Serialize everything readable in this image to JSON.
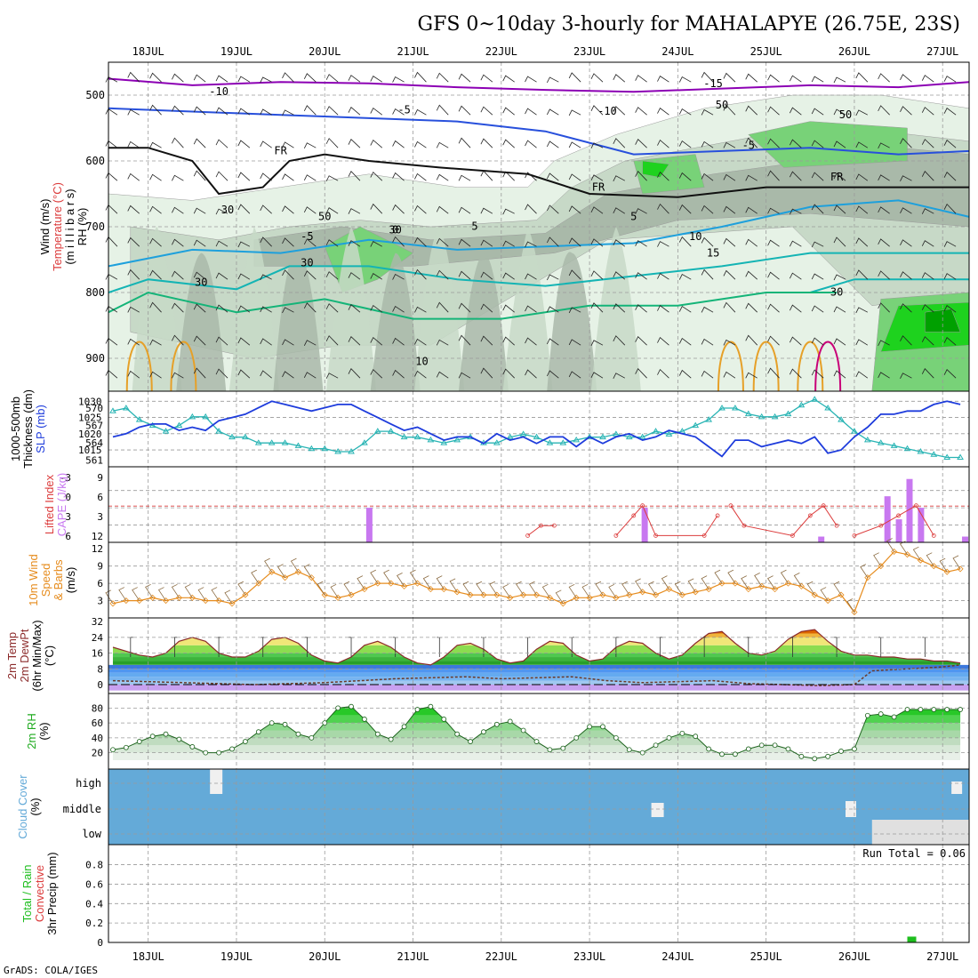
{
  "header": {
    "title": "GFS 0~10day 3-hourly for MAHALAPYE (26.75E, 23S)",
    "footer": "GrADS: COLA/IGES"
  },
  "time_axis": {
    "labels": [
      "18JUL",
      "19JUL",
      "20JUL",
      "21JUL",
      "22JUL",
      "23JUL",
      "24JUL",
      "25JUL",
      "26JUL",
      "27JUL"
    ],
    "start_day": 17.55,
    "end_day": 27.3
  },
  "colors": {
    "rh_light": "#e6f2e6",
    "rh_mid": "#c7d9c7",
    "rh_dark": "#a9b9a9",
    "rh_green": "#78d278",
    "rh_bright": "#1ed21e",
    "rh_deep": "#00a000",
    "temp_purple": "#8c00b4",
    "temp_blue": "#2850dc",
    "temp_lightblue": "#1ea0dc",
    "temp_teal": "#14b4b4",
    "temp_green": "#14b478",
    "temp_orange": "#e6a028",
    "temp_dkorange": "#dc6400",
    "temp_magenta": "#c80078",
    "slp": "#1e3cdc",
    "thickness": "#28b4b4",
    "cape": "#c878f0",
    "lifted": "#dc3c3c",
    "wind10m": "#e68c1e",
    "cloud": "#64aad8",
    "precip": "#1ebe1e"
  },
  "panels": {
    "upper": {
      "ylabels": [
        "Wind (m/s)",
        "Temperature (°C)",
        "(m i l l i b a r s)",
        "RH (%)"
      ],
      "ylim": [
        950,
        450
      ],
      "ticks": [
        500,
        600,
        700,
        800,
        900
      ],
      "contour_labels": [
        "-10",
        "-15",
        "-10",
        "-5",
        "-5",
        "-5",
        "FR",
        "FR",
        "FR",
        "5",
        "5",
        "10",
        "15",
        "10",
        "50",
        "50",
        "30",
        "50",
        "30",
        "30",
        "30",
        "30",
        "0"
      ]
    },
    "slp": {
      "ylabels": [
        "1000-500mb",
        "Thickness (dm)",
        "SLP (mb)"
      ],
      "left_ticks": [
        "570",
        "567",
        "564",
        "561"
      ],
      "right_ticks": [
        "1030",
        "1025",
        "1020",
        "1015"
      ]
    },
    "cape": {
      "ylabels": [
        "Lifted Index",
        "CAPE (J/kg)"
      ],
      "left_ticks": [
        "-3",
        "0",
        "3",
        "6"
      ],
      "right_ticks": [
        "9",
        "6",
        "3",
        "12"
      ]
    },
    "wind": {
      "ylabels": [
        "10m Wind",
        "Speed",
        "& Barbs",
        "(m/s)"
      ],
      "ticks": [
        "12",
        "9",
        "6",
        "3"
      ]
    },
    "temp": {
      "ylabels": [
        "2m Temp",
        "2m DewPt",
        "(6hr Min/Max)",
        "(°C)"
      ],
      "ticks": [
        "32",
        "24",
        "16",
        "8",
        "0"
      ]
    },
    "rh": {
      "ylabels": [
        "2m RH",
        "(%)"
      ],
      "ticks": [
        "80",
        "60",
        "40",
        "20"
      ]
    },
    "cloud": {
      "ylabels": [
        "Cloud Cover",
        "(%)"
      ],
      "levels": [
        "high",
        "middle",
        "low"
      ]
    },
    "precip": {
      "ylabels": [
        "Total / Rain",
        "Convective",
        "3hr Precip (mm)"
      ],
      "ticks": [
        "0.8",
        "0.6",
        "0.4",
        "0.2",
        "0"
      ],
      "run_total": "Run Total = 0.06"
    }
  },
  "chart_data": [
    {
      "type": "line",
      "name": "SLP",
      "unit": "mb",
      "x": [
        17.6,
        17.75,
        17.9,
        18.05,
        18.2,
        18.35,
        18.5,
        18.65,
        18.8,
        18.95,
        19.1,
        19.25,
        19.4,
        19.55,
        19.7,
        19.85,
        20.0,
        20.15,
        20.3,
        20.45,
        20.6,
        20.75,
        20.9,
        21.05,
        21.2,
        21.35,
        21.5,
        21.65,
        21.8,
        21.95,
        22.1,
        22.25,
        22.4,
        22.55,
        22.7,
        22.85,
        23.0,
        23.15,
        23.3,
        23.45,
        23.6,
        23.75,
        23.9,
        24.05,
        24.2,
        24.35,
        24.5,
        24.65,
        24.8,
        24.95,
        25.1,
        25.25,
        25.4,
        25.55,
        25.7,
        25.85,
        26.0,
        26.15,
        26.3,
        26.45,
        26.6,
        26.75,
        26.9,
        27.05,
        27.2
      ],
      "y": [
        1019,
        1020,
        1022,
        1023,
        1023,
        1021,
        1022,
        1021,
        1024,
        1025,
        1026,
        1028,
        1030,
        1029,
        1028,
        1027,
        1028,
        1029,
        1029,
        1027,
        1025,
        1023,
        1021,
        1022,
        1020,
        1018,
        1019,
        1019,
        1017,
        1020,
        1018,
        1019,
        1017,
        1019,
        1019,
        1016,
        1019,
        1017,
        1019,
        1020,
        1018,
        1019,
        1021,
        1020,
        1019,
        1016,
        1013,
        1018,
        1018,
        1016,
        1017,
        1018,
        1017,
        1019,
        1014,
        1015,
        1019,
        1022,
        1026,
        1026,
        1027,
        1027,
        1029,
        1030,
        1029
      ]
    },
    {
      "type": "line",
      "name": "1000-500mb Thickness",
      "unit": "dm",
      "x": [
        17.6,
        17.75,
        17.9,
        18.05,
        18.2,
        18.35,
        18.5,
        18.65,
        18.8,
        18.95,
        19.1,
        19.25,
        19.4,
        19.55,
        19.7,
        19.85,
        20.0,
        20.15,
        20.3,
        20.45,
        20.6,
        20.75,
        20.9,
        21.05,
        21.2,
        21.35,
        21.5,
        21.65,
        21.8,
        21.95,
        22.1,
        22.25,
        22.4,
        22.55,
        22.7,
        22.85,
        23.0,
        23.15,
        23.3,
        23.45,
        23.6,
        23.75,
        23.9,
        24.05,
        24.2,
        24.35,
        24.5,
        24.65,
        24.8,
        24.95,
        25.1,
        25.25,
        25.4,
        25.55,
        25.7,
        25.85,
        26.0,
        26.15,
        26.3,
        26.45,
        26.6,
        26.75,
        26.9,
        27.05,
        27.2
      ],
      "y": [
        569.5,
        570,
        568,
        567,
        566,
        567,
        568.5,
        568.5,
        566,
        565,
        565,
        564,
        564,
        564,
        563.5,
        563,
        563,
        562.5,
        562.5,
        564,
        566,
        566,
        565,
        565,
        564.5,
        564,
        564.5,
        565,
        564,
        564,
        565,
        565.5,
        565,
        564,
        564,
        564.5,
        565,
        565,
        565.5,
        565,
        565,
        566,
        565.5,
        566,
        567,
        568,
        570,
        570,
        569,
        568.5,
        568.5,
        569,
        570.5,
        571.5,
        570,
        568,
        566,
        564.5,
        564,
        563.5,
        563,
        562.5,
        562,
        561.5,
        561.5
      ]
    },
    {
      "type": "bar",
      "name": "CAPE",
      "unit": "J/kg",
      "x": [
        20.5,
        23.62,
        25.62,
        26.37,
        26.5,
        26.62,
        26.75,
        27.25
      ],
      "y": [
        6,
        6,
        1,
        8,
        4,
        11,
        6,
        1
      ]
    },
    {
      "type": "line",
      "name": "Lifted Index",
      "x": [
        22.3,
        22.45,
        22.6,
        23.3,
        23.5,
        23.6,
        23.75,
        24.3,
        24.45,
        24.6,
        24.75,
        25.3,
        25.5,
        25.65,
        25.8,
        26.0,
        26.3,
        26.5,
        26.7,
        26.9
      ],
      "y": [
        6,
        5,
        5,
        6,
        4,
        3,
        6,
        6,
        4,
        3,
        5,
        6,
        4,
        3,
        5,
        6,
        5,
        4,
        3,
        6
      ]
    },
    {
      "type": "line",
      "name": "10m Wind Speed",
      "unit": "m/s",
      "x": [
        17.6,
        17.75,
        17.9,
        18.05,
        18.2,
        18.35,
        18.5,
        18.65,
        18.8,
        18.95,
        19.1,
        19.25,
        19.4,
        19.55,
        19.7,
        19.85,
        20.0,
        20.15,
        20.3,
        20.45,
        20.6,
        20.75,
        20.9,
        21.05,
        21.2,
        21.35,
        21.5,
        21.65,
        21.8,
        21.95,
        22.1,
        22.25,
        22.4,
        22.55,
        22.7,
        22.85,
        23.0,
        23.15,
        23.3,
        23.45,
        23.6,
        23.75,
        23.9,
        24.05,
        24.2,
        24.35,
        24.5,
        24.65,
        24.8,
        24.95,
        25.1,
        25.25,
        25.4,
        25.55,
        25.7,
        25.85,
        26.0,
        26.15,
        26.3,
        26.45,
        26.6,
        26.75,
        26.9,
        27.05,
        27.2
      ],
      "y": [
        2.5,
        3,
        3,
        3.5,
        3,
        3.5,
        3.5,
        3,
        3,
        2.5,
        4,
        6,
        8,
        7,
        8,
        7,
        4,
        3.5,
        4,
        5,
        6,
        6,
        5.5,
        6,
        5,
        5,
        4.5,
        4,
        4,
        4,
        3.5,
        4,
        4,
        3.5,
        2.5,
        3.5,
        3.5,
        4,
        3.5,
        4,
        4.5,
        4,
        5,
        4,
        4.5,
        5,
        6,
        6,
        5,
        5.5,
        5,
        6,
        5.5,
        4,
        3,
        4,
        1,
        7,
        9,
        11.5,
        11,
        10,
        9,
        8,
        8.5
      ]
    },
    {
      "type": "area",
      "name": "2m Temp",
      "unit": "°C",
      "x": [
        17.6,
        17.75,
        17.9,
        18.05,
        18.2,
        18.35,
        18.5,
        18.65,
        18.8,
        18.95,
        19.1,
        19.25,
        19.4,
        19.55,
        19.7,
        19.85,
        20.0,
        20.15,
        20.3,
        20.45,
        20.6,
        20.75,
        20.9,
        21.05,
        21.2,
        21.35,
        21.5,
        21.65,
        21.8,
        21.95,
        22.1,
        22.25,
        22.4,
        22.55,
        22.7,
        22.85,
        23.0,
        23.15,
        23.3,
        23.45,
        23.6,
        23.75,
        23.9,
        24.05,
        24.2,
        24.35,
        24.5,
        24.65,
        24.8,
        24.95,
        25.1,
        25.25,
        25.4,
        25.55,
        25.7,
        25.85,
        26.0,
        26.15,
        26.3,
        26.45,
        26.6,
        26.75,
        26.9,
        27.05,
        27.2
      ],
      "y": [
        19,
        17,
        15,
        14,
        16,
        22,
        24,
        22,
        16,
        14,
        14,
        17,
        23,
        24,
        21,
        15,
        12,
        11,
        14,
        20,
        22,
        19,
        14,
        11,
        10,
        14,
        20,
        21,
        18,
        13,
        11,
        12,
        18,
        22,
        21,
        15,
        12,
        13,
        19,
        22,
        21,
        16,
        13,
        15,
        21,
        26,
        27,
        21,
        16,
        15,
        17,
        23,
        27,
        28,
        22,
        17,
        15,
        15,
        14,
        14,
        13,
        13,
        12,
        12,
        11
      ]
    },
    {
      "type": "line",
      "name": "2m DewPt",
      "unit": "°C",
      "x": [
        17.6,
        18.0,
        18.4,
        18.8,
        19.2,
        19.6,
        20.0,
        20.4,
        20.8,
        21.2,
        21.6,
        22.0,
        22.4,
        22.8,
        23.2,
        23.6,
        24.0,
        24.4,
        24.8,
        25.2,
        25.6,
        26.0,
        26.2,
        26.6,
        27.0,
        27.2
      ],
      "y": [
        2,
        1.5,
        1,
        0.5,
        0,
        0.5,
        1,
        2,
        3,
        3.5,
        4,
        3,
        3.5,
        4,
        2,
        1,
        1.5,
        2,
        0.5,
        0,
        -0.5,
        0,
        7,
        8,
        9,
        10
      ]
    },
    {
      "type": "area",
      "name": "2m RH",
      "unit": "%",
      "x": [
        17.6,
        17.75,
        17.9,
        18.05,
        18.2,
        18.35,
        18.5,
        18.65,
        18.8,
        18.95,
        19.1,
        19.25,
        19.4,
        19.55,
        19.7,
        19.85,
        20.0,
        20.15,
        20.3,
        20.45,
        20.6,
        20.75,
        20.9,
        21.05,
        21.2,
        21.35,
        21.5,
        21.65,
        21.8,
        21.95,
        22.1,
        22.25,
        22.4,
        22.55,
        22.7,
        22.85,
        23.0,
        23.15,
        23.3,
        23.45,
        23.6,
        23.75,
        23.9,
        24.05,
        24.2,
        24.35,
        24.5,
        24.65,
        24.8,
        24.95,
        25.1,
        25.25,
        25.4,
        25.55,
        25.7,
        25.85,
        26.0,
        26.15,
        26.3,
        26.45,
        26.6,
        26.75,
        26.9,
        27.05,
        27.2
      ],
      "y": [
        24,
        27,
        35,
        42,
        45,
        38,
        28,
        20,
        20,
        25,
        35,
        48,
        60,
        58,
        45,
        40,
        60,
        80,
        82,
        65,
        45,
        38,
        55,
        78,
        82,
        65,
        45,
        35,
        48,
        58,
        62,
        50,
        35,
        24,
        26,
        40,
        55,
        55,
        40,
        24,
        20,
        30,
        40,
        46,
        42,
        25,
        18,
        18,
        25,
        30,
        30,
        25,
        15,
        12,
        15,
        22,
        25,
        70,
        72,
        68,
        78,
        78,
        78,
        78,
        78
      ]
    },
    {
      "type": "bar",
      "name": "3hr Precip Total",
      "unit": "mm",
      "x": [
        26.6
      ],
      "y": [
        0.06
      ]
    }
  ]
}
